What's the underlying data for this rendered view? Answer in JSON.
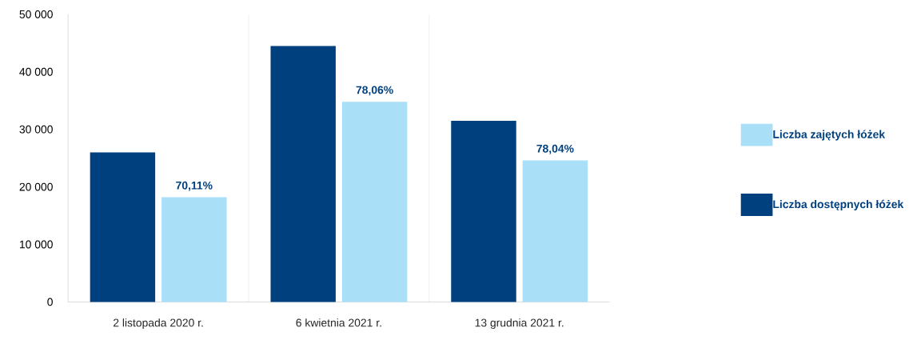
{
  "chart_data": {
    "type": "bar",
    "categories": [
      "2 listopada 2020 r.",
      "6 kwietnia 2021 r.",
      "13 grudnia 2021 r."
    ],
    "series": [
      {
        "name": "Liczba dostępnych łóżek",
        "color": "#00407f",
        "values": [
          26000,
          44500,
          31500
        ]
      },
      {
        "name": "Liczba zajętych łóżek",
        "color": "#aadff8",
        "values": [
          18200,
          34800,
          24600
        ]
      }
    ],
    "annotations": [
      {
        "text": "70,11%",
        "x": "2 listopada 2020 r.",
        "y": 18200
      },
      {
        "text": "78,06%",
        "x": "6 kwietnia 2021 r.",
        "y": 34800
      },
      {
        "text": "78,04%",
        "x": "13 grudnia 2021 r.",
        "y": 24600
      }
    ],
    "ylim": [
      0,
      50000
    ],
    "yticks": [
      {
        "value": 0,
        "label": "0"
      },
      {
        "value": 10000,
        "label": "10 000"
      },
      {
        "value": 20000,
        "label": "20 000"
      },
      {
        "value": 30000,
        "label": "30 000"
      },
      {
        "value": 40000,
        "label": "40 000"
      },
      {
        "value": 50000,
        "label": "50 000"
      }
    ],
    "grid": "x",
    "legend": "right"
  }
}
